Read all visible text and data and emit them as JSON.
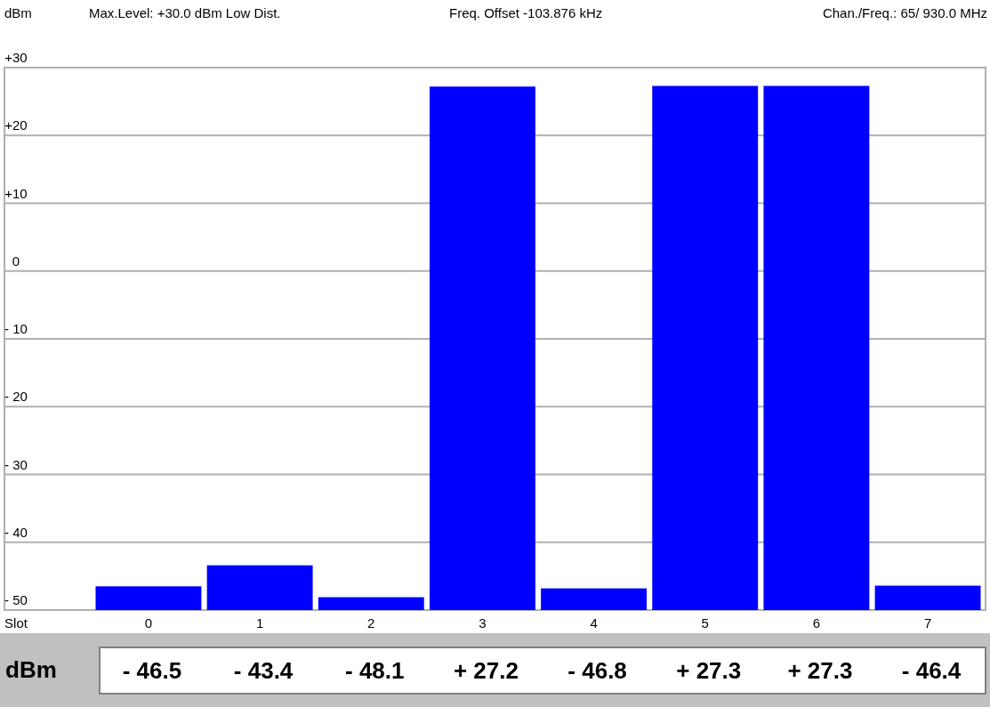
{
  "chart_data": {
    "type": "bar",
    "ylabel": "dBm",
    "xlabel": "Slot",
    "annotations": [
      "Max.Level: +30.0 dBm  Low Dist.",
      "Freq. Offset -103.876 kHz",
      "Chan./Freq.:  65/  930.0 MHz",
      "dBm"
    ],
    "categories": [
      "0",
      "1",
      "2",
      "3",
      "4",
      "5",
      "6",
      "7"
    ],
    "values": [
      3.5,
      6.6,
      1.9,
      77.2,
      3.2,
      77.3,
      77.3,
      3.6
    ],
    "base": [
      -50,
      -50,
      -50,
      -50,
      -50,
      -50,
      -50,
      -50
    ],
    "value_labels": [
      "- 46.5",
      "- 43.4",
      "- 48.1",
      "+ 27.2",
      "- 46.8",
      "+ 27.3",
      "+ 27.3",
      "- 46.4"
    ],
    "color": "#0000ff",
    "ylim": [
      -50,
      30
    ],
    "yticks": [
      {
        "value": 30,
        "label": "+30"
      },
      {
        "value": 20,
        "label": "+20"
      },
      {
        "value": 10,
        "label": "+10"
      },
      0,
      {
        "value": -10,
        "label": "- 10"
      },
      {
        "value": -20,
        "label": "- 20"
      },
      {
        "value": -30,
        "label": "- 30"
      },
      {
        "value": -40,
        "label": "- 40"
      },
      {
        "value": -50,
        "label": "- 50"
      }
    ],
    "grid": "y"
  }
}
